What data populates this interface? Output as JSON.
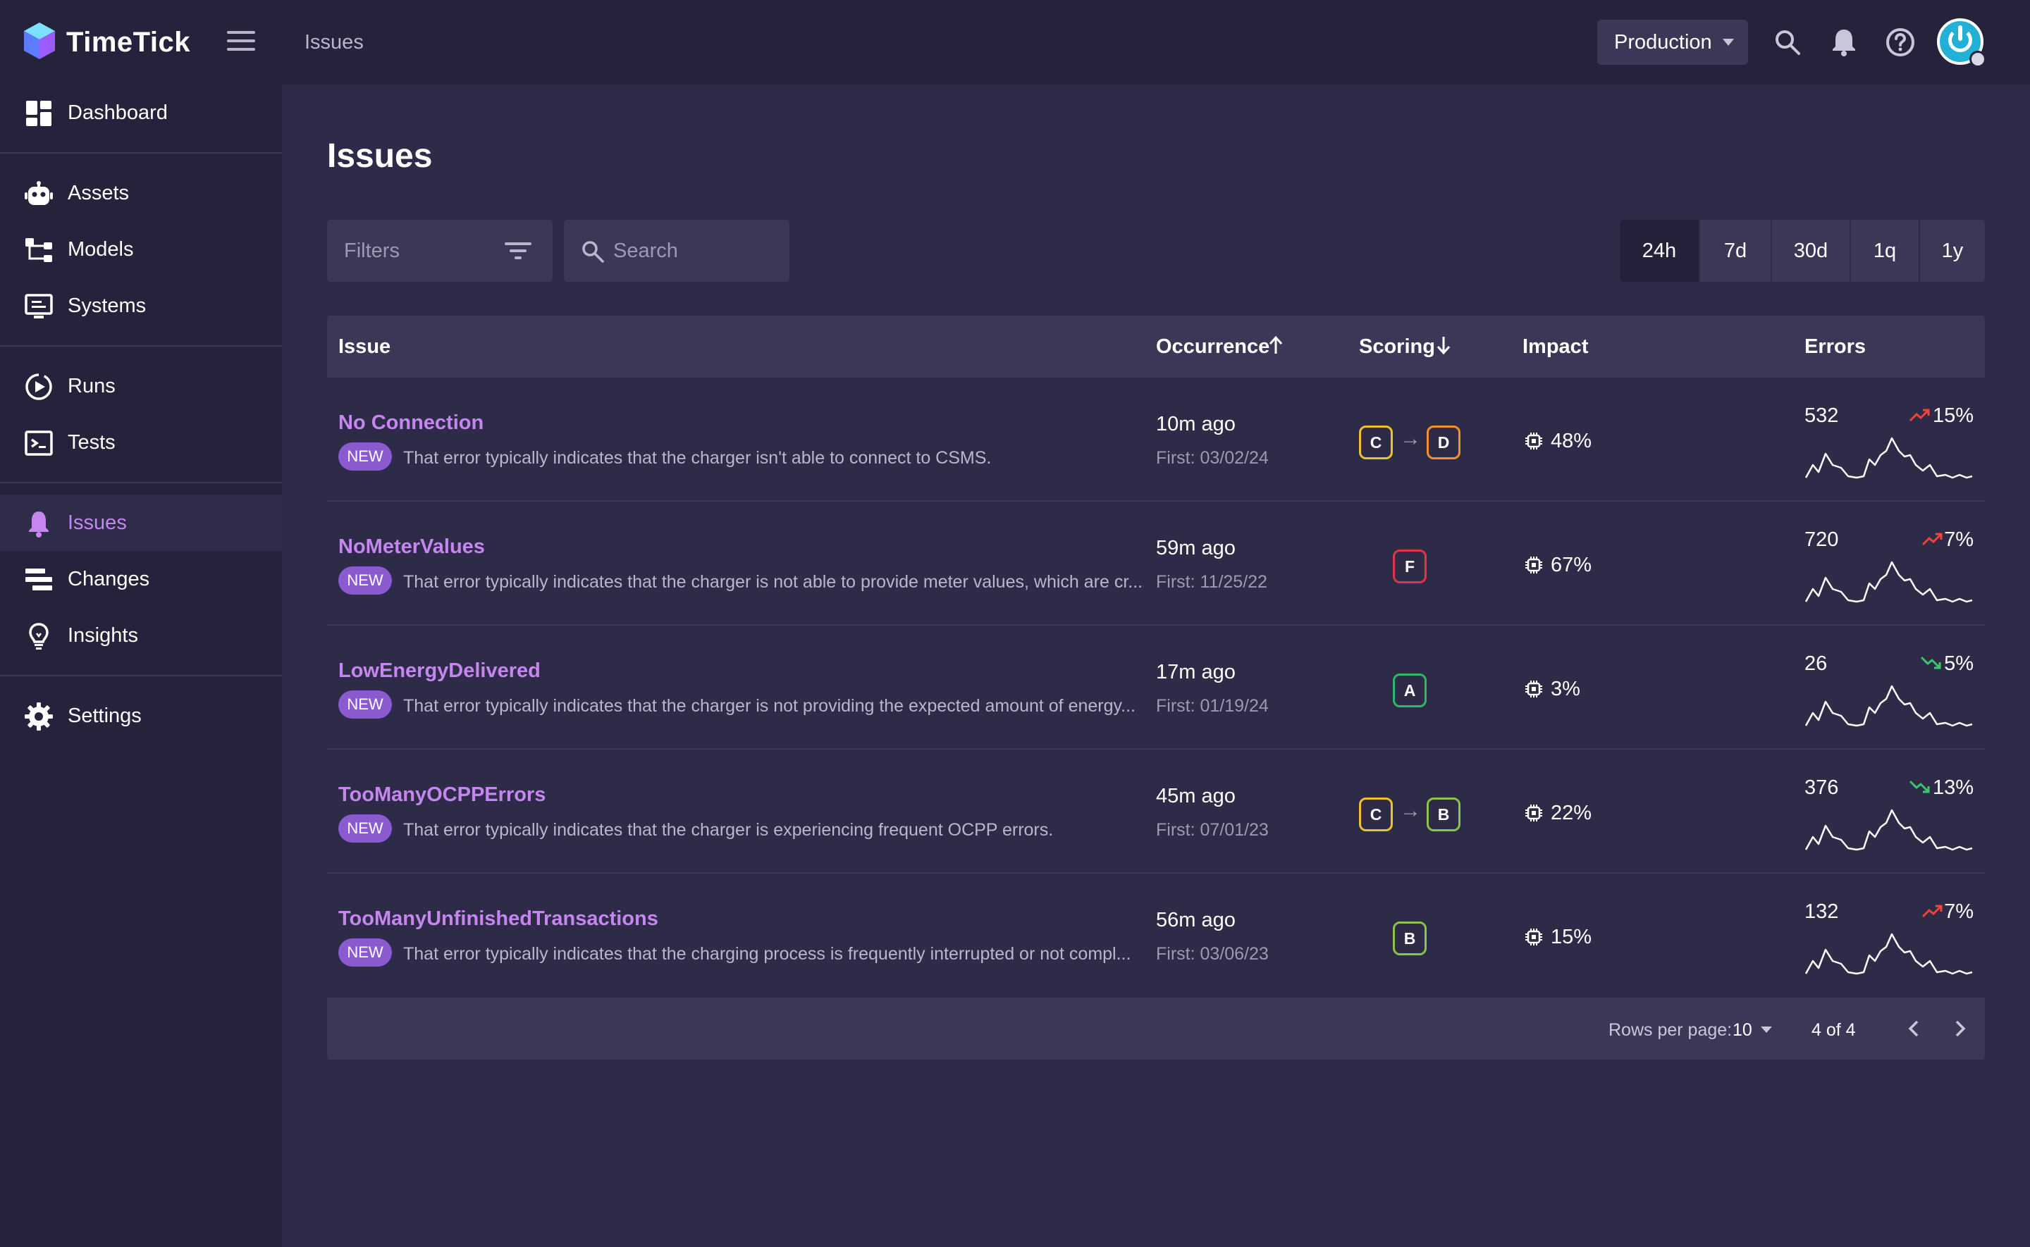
{
  "app": {
    "brand": "TimeTick",
    "breadcrumb": "Issues",
    "environment": "Production"
  },
  "sidebar": {
    "items": [
      {
        "label": "Dashboard",
        "icon": "dashboard-icon"
      },
      {
        "label": "Assets",
        "icon": "robot-icon"
      },
      {
        "label": "Models",
        "icon": "hierarchy-icon"
      },
      {
        "label": "Systems",
        "icon": "monitor-icon"
      },
      {
        "label": "Runs",
        "icon": "play-circle-icon"
      },
      {
        "label": "Tests",
        "icon": "terminal-icon"
      },
      {
        "label": "Issues",
        "icon": "bell-icon",
        "active": true
      },
      {
        "label": "Changes",
        "icon": "stack-icon"
      },
      {
        "label": "Insights",
        "icon": "lightbulb-icon"
      },
      {
        "label": "Settings",
        "icon": "gear-icon"
      }
    ]
  },
  "main": {
    "title": "Issues",
    "filters_label": "Filters",
    "search_placeholder": "Search",
    "ranges": [
      "24h",
      "7d",
      "30d",
      "1q",
      "1y"
    ],
    "selected_range": "24h"
  },
  "table": {
    "columns": {
      "issue": "Issue",
      "occurrence": "Occurrence",
      "scoring": "Scoring",
      "impact": "Impact",
      "errors": "Errors"
    },
    "new_badge": "NEW",
    "rows": [
      {
        "name": "No Connection",
        "description": "That error typically indicates that the charger isn't able to connect to CSMS.",
        "occurrence": "10m ago",
        "first": "First: 03/02/24",
        "score_from": "C",
        "score_to": "D",
        "impact": "48%",
        "errors": "532",
        "trend": "up",
        "trend_pct": "15%"
      },
      {
        "name": "NoMeterValues",
        "description": "That error typically indicates that the charger is not able to provide meter values, which are cr...",
        "occurrence": "59m ago",
        "first": "First: 11/25/22",
        "score_from": "",
        "score_to": "F",
        "impact": "67%",
        "errors": "720",
        "trend": "up",
        "trend_pct": "7%"
      },
      {
        "name": "LowEnergyDelivered",
        "description": "That error typically indicates that the charger is not providing the expected amount of energy...",
        "occurrence": "17m ago",
        "first": "First: 01/19/24",
        "score_from": "",
        "score_to": "A",
        "impact": "3%",
        "errors": "26",
        "trend": "down",
        "trend_pct": "5%"
      },
      {
        "name": "TooManyOCPPErrors",
        "description": "That error typically indicates that the charger is experiencing frequent OCPP errors.",
        "occurrence": "45m ago",
        "first": "First: 07/01/23",
        "score_from": "C",
        "score_to": "B",
        "impact": "22%",
        "errors": "376",
        "trend": "down",
        "trend_pct": "13%"
      },
      {
        "name": "TooManyUnfinishedTransactions",
        "description": "That error typically indicates that the charging process is frequently interrupted or not compl...",
        "occurrence": "56m ago",
        "first": "First: 03/06/23",
        "score_from": "",
        "score_to": "B",
        "impact": "15%",
        "errors": "132",
        "trend": "up",
        "trend_pct": "7%"
      }
    ],
    "footer": {
      "rows_per_page_label": "Rows per page:",
      "rows_per_page": "10",
      "page_info": "4 of 4"
    }
  },
  "colors": {
    "accent": "#c586f0",
    "badge": "#8a5ad1",
    "grade_A": "#2fb86a",
    "grade_B": "#8bc34a",
    "grade_C": "#f0c22a",
    "grade_D": "#f0922a",
    "grade_F": "#e0344a",
    "trend_up": "#f0443a",
    "trend_down": "#3cc86a"
  }
}
